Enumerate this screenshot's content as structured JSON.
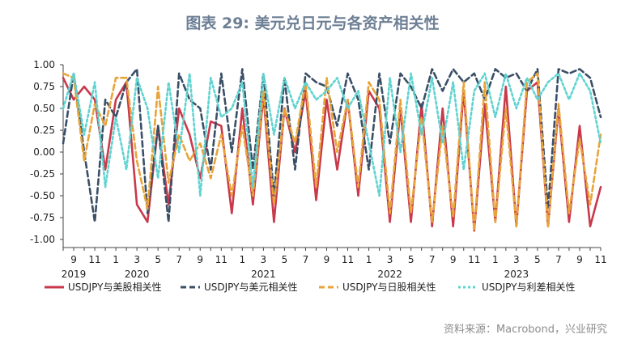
{
  "chart_data": {
    "type": "line",
    "title": "图表 29: 美元兑日元与各资产相关性",
    "xlabel": "",
    "ylabel": "",
    "ylim": [
      -1.0,
      1.0
    ],
    "y_ticks": [
      "1.00",
      "0.75",
      "0.50",
      "0.25",
      "0.00",
      "-0.25",
      "-0.50",
      "-0.75",
      "-1.00"
    ],
    "x_range_months": [
      "2019-08",
      "2023-11"
    ],
    "x_tick_labels": [
      {
        "month": "2019-09",
        "label": "9"
      },
      {
        "month": "2019-11",
        "label": "11"
      },
      {
        "month": "2020-01",
        "label": "1"
      },
      {
        "month": "2020-03",
        "label": "3"
      },
      {
        "month": "2020-05",
        "label": "5"
      },
      {
        "month": "2020-07",
        "label": "7"
      },
      {
        "month": "2020-09",
        "label": "9"
      },
      {
        "month": "2020-11",
        "label": "11"
      },
      {
        "month": "2021-01",
        "label": "1"
      },
      {
        "month": "2021-03",
        "label": "3"
      },
      {
        "month": "2021-05",
        "label": "5"
      },
      {
        "month": "2021-07",
        "label": "7"
      },
      {
        "month": "2021-09",
        "label": "9"
      },
      {
        "month": "2021-11",
        "label": "11"
      },
      {
        "month": "2022-01",
        "label": "1"
      },
      {
        "month": "2022-03",
        "label": "3"
      },
      {
        "month": "2022-05",
        "label": "5"
      },
      {
        "month": "2022-07",
        "label": "7"
      },
      {
        "month": "2022-09",
        "label": "9"
      },
      {
        "month": "2022-11",
        "label": "11"
      },
      {
        "month": "2023-01",
        "label": "1"
      },
      {
        "month": "2023-03",
        "label": "3"
      },
      {
        "month": "2023-05",
        "label": "5"
      },
      {
        "month": "2023-07",
        "label": "7"
      },
      {
        "month": "2023-09",
        "label": "9"
      },
      {
        "month": "2023-11",
        "label": "11"
      }
    ],
    "year_labels": [
      {
        "month": "2019-09",
        "label": "2019"
      },
      {
        "month": "2020-03",
        "label": "2020"
      },
      {
        "month": "2021-03",
        "label": "2021"
      },
      {
        "month": "2022-03",
        "label": "2022"
      },
      {
        "month": "2023-03",
        "label": "2023"
      }
    ],
    "grid": false,
    "legend_position": "bottom",
    "series": [
      {
        "name": "USDJPY与美股相关性",
        "color": "#c8394b",
        "style": "solid",
        "points": [
          [
            "2019-08",
            0.85
          ],
          [
            "2019-09",
            0.6
          ],
          [
            "2019-10",
            0.75
          ],
          [
            "2019-11",
            0.6
          ],
          [
            "2019-12",
            -0.2
          ],
          [
            "2020-01",
            0.6
          ],
          [
            "2020-02",
            0.8
          ],
          [
            "2020-03",
            -0.6
          ],
          [
            "2020-04",
            -0.8
          ],
          [
            "2020-05",
            0.3
          ],
          [
            "2020-06",
            -0.6
          ],
          [
            "2020-07",
            0.5
          ],
          [
            "2020-08",
            0.2
          ],
          [
            "2020-09",
            -0.3
          ],
          [
            "2020-10",
            0.35
          ],
          [
            "2020-11",
            0.3
          ],
          [
            "2020-12",
            -0.7
          ],
          [
            "2021-01",
            0.5
          ],
          [
            "2021-02",
            -0.6
          ],
          [
            "2021-03",
            0.65
          ],
          [
            "2021-04",
            -0.8
          ],
          [
            "2021-05",
            0.5
          ],
          [
            "2021-06",
            0.0
          ],
          [
            "2021-07",
            0.7
          ],
          [
            "2021-08",
            -0.55
          ],
          [
            "2021-09",
            0.6
          ],
          [
            "2021-10",
            -0.2
          ],
          [
            "2021-11",
            0.6
          ],
          [
            "2021-12",
            -0.5
          ],
          [
            "2022-01",
            0.7
          ],
          [
            "2022-02",
            0.5
          ],
          [
            "2022-03",
            -0.8
          ],
          [
            "2022-04",
            0.5
          ],
          [
            "2022-05",
            -0.8
          ],
          [
            "2022-06",
            0.55
          ],
          [
            "2022-07",
            -0.85
          ],
          [
            "2022-08",
            0.5
          ],
          [
            "2022-09",
            -0.85
          ],
          [
            "2022-10",
            0.7
          ],
          [
            "2022-11",
            -0.9
          ],
          [
            "2022-12",
            0.55
          ],
          [
            "2023-01",
            -0.8
          ],
          [
            "2023-02",
            0.75
          ],
          [
            "2023-03",
            -0.85
          ],
          [
            "2023-04",
            0.7
          ],
          [
            "2023-05",
            0.8
          ],
          [
            "2023-06",
            -0.85
          ],
          [
            "2023-07",
            0.5
          ],
          [
            "2023-08",
            -0.8
          ],
          [
            "2023-09",
            0.3
          ],
          [
            "2023-10",
            -0.85
          ],
          [
            "2023-11",
            -0.4
          ]
        ]
      },
      {
        "name": "USDJPY与美元相关性",
        "color": "#3a4f66",
        "style": "dashed",
        "points": [
          [
            "2019-08",
            0.1
          ],
          [
            "2019-09",
            0.9
          ],
          [
            "2019-10",
            0.0
          ],
          [
            "2019-11",
            -0.8
          ],
          [
            "2019-12",
            0.6
          ],
          [
            "2020-01",
            0.4
          ],
          [
            "2020-02",
            0.8
          ],
          [
            "2020-03",
            0.95
          ],
          [
            "2020-04",
            -0.7
          ],
          [
            "2020-05",
            0.3
          ],
          [
            "2020-06",
            -0.8
          ],
          [
            "2020-07",
            0.9
          ],
          [
            "2020-08",
            0.6
          ],
          [
            "2020-09",
            0.5
          ],
          [
            "2020-10",
            -0.2
          ],
          [
            "2020-11",
            0.9
          ],
          [
            "2020-12",
            0.0
          ],
          [
            "2021-01",
            0.95
          ],
          [
            "2021-02",
            -0.2
          ],
          [
            "2021-03",
            0.9
          ],
          [
            "2021-04",
            -0.5
          ],
          [
            "2021-05",
            0.85
          ],
          [
            "2021-06",
            -0.2
          ],
          [
            "2021-07",
            0.9
          ],
          [
            "2021-08",
            0.8
          ],
          [
            "2021-09",
            0.75
          ],
          [
            "2021-10",
            0.3
          ],
          [
            "2021-11",
            0.9
          ],
          [
            "2021-12",
            0.6
          ],
          [
            "2022-01",
            -0.2
          ],
          [
            "2022-02",
            0.9
          ],
          [
            "2022-03",
            0.1
          ],
          [
            "2022-04",
            0.9
          ],
          [
            "2022-05",
            0.75
          ],
          [
            "2022-06",
            0.5
          ],
          [
            "2022-07",
            0.95
          ],
          [
            "2022-08",
            0.7
          ],
          [
            "2022-09",
            0.95
          ],
          [
            "2022-10",
            0.8
          ],
          [
            "2022-11",
            0.9
          ],
          [
            "2022-12",
            0.6
          ],
          [
            "2023-01",
            0.95
          ],
          [
            "2023-02",
            0.85
          ],
          [
            "2023-03",
            0.9
          ],
          [
            "2023-04",
            0.7
          ],
          [
            "2023-05",
            0.95
          ],
          [
            "2023-06",
            -0.65
          ],
          [
            "2023-07",
            0.95
          ],
          [
            "2023-08",
            0.9
          ],
          [
            "2023-09",
            0.95
          ],
          [
            "2023-10",
            0.85
          ],
          [
            "2023-11",
            0.4
          ]
        ]
      },
      {
        "name": "USDJPY与日股相关性",
        "color": "#e8a43a",
        "style": "dashed",
        "points": [
          [
            "2019-08",
            0.9
          ],
          [
            "2019-09",
            0.85
          ],
          [
            "2019-10",
            -0.1
          ],
          [
            "2019-11",
            0.55
          ],
          [
            "2019-12",
            0.3
          ],
          [
            "2020-01",
            0.85
          ],
          [
            "2020-02",
            0.85
          ],
          [
            "2020-03",
            -0.1
          ],
          [
            "2020-04",
            -0.65
          ],
          [
            "2020-05",
            0.75
          ],
          [
            "2020-06",
            -0.35
          ],
          [
            "2020-07",
            0.2
          ],
          [
            "2020-08",
            -0.1
          ],
          [
            "2020-09",
            0.1
          ],
          [
            "2020-10",
            -0.3
          ],
          [
            "2020-11",
            0.2
          ],
          [
            "2020-12",
            -0.5
          ],
          [
            "2021-01",
            0.3
          ],
          [
            "2021-02",
            -0.5
          ],
          [
            "2021-03",
            0.7
          ],
          [
            "2021-04",
            -0.6
          ],
          [
            "2021-05",
            0.5
          ],
          [
            "2021-06",
            0.1
          ],
          [
            "2021-07",
            0.8
          ],
          [
            "2021-08",
            -0.4
          ],
          [
            "2021-09",
            0.85
          ],
          [
            "2021-10",
            0.0
          ],
          [
            "2021-11",
            0.6
          ],
          [
            "2021-12",
            -0.4
          ],
          [
            "2022-01",
            0.8
          ],
          [
            "2022-02",
            0.6
          ],
          [
            "2022-03",
            -0.7
          ],
          [
            "2022-04",
            0.6
          ],
          [
            "2022-05",
            -0.7
          ],
          [
            "2022-06",
            0.4
          ],
          [
            "2022-07",
            -0.8
          ],
          [
            "2022-08",
            0.3
          ],
          [
            "2022-09",
            -0.75
          ],
          [
            "2022-10",
            0.8
          ],
          [
            "2022-11",
            -0.9
          ],
          [
            "2022-12",
            0.8
          ],
          [
            "2023-01",
            -0.8
          ],
          [
            "2023-02",
            0.5
          ],
          [
            "2023-03",
            -0.85
          ],
          [
            "2023-04",
            0.8
          ],
          [
            "2023-05",
            0.9
          ],
          [
            "2023-06",
            -0.85
          ],
          [
            "2023-07",
            0.55
          ],
          [
            "2023-08",
            -0.7
          ],
          [
            "2023-09",
            0.15
          ],
          [
            "2023-10",
            -0.6
          ],
          [
            "2023-11",
            0.2
          ]
        ]
      },
      {
        "name": "USDJPY与利差相关性",
        "color": "#5fd3d0",
        "style": "dotted",
        "points": [
          [
            "2019-08",
            0.5
          ],
          [
            "2019-09",
            0.9
          ],
          [
            "2019-10",
            0.2
          ],
          [
            "2019-11",
            0.8
          ],
          [
            "2019-12",
            -0.4
          ],
          [
            "2020-01",
            0.4
          ],
          [
            "2020-02",
            -0.2
          ],
          [
            "2020-03",
            0.85
          ],
          [
            "2020-04",
            0.5
          ],
          [
            "2020-05",
            -0.3
          ],
          [
            "2020-06",
            0.8
          ],
          [
            "2020-07",
            0.0
          ],
          [
            "2020-08",
            0.9
          ],
          [
            "2020-09",
            -0.5
          ],
          [
            "2020-10",
            0.85
          ],
          [
            "2020-11",
            0.4
          ],
          [
            "2020-12",
            0.5
          ],
          [
            "2021-01",
            0.8
          ],
          [
            "2021-02",
            -0.4
          ],
          [
            "2021-03",
            0.9
          ],
          [
            "2021-04",
            0.2
          ],
          [
            "2021-05",
            0.85
          ],
          [
            "2021-06",
            0.5
          ],
          [
            "2021-07",
            0.8
          ],
          [
            "2021-08",
            0.6
          ],
          [
            "2021-09",
            0.7
          ],
          [
            "2021-10",
            0.85
          ],
          [
            "2021-11",
            0.5
          ],
          [
            "2021-12",
            0.7
          ],
          [
            "2022-01",
            0.1
          ],
          [
            "2022-02",
            -0.5
          ],
          [
            "2022-03",
            0.85
          ],
          [
            "2022-04",
            0.0
          ],
          [
            "2022-05",
            0.9
          ],
          [
            "2022-06",
            0.2
          ],
          [
            "2022-07",
            0.85
          ],
          [
            "2022-08",
            0.1
          ],
          [
            "2022-09",
            0.8
          ],
          [
            "2022-10",
            -0.2
          ],
          [
            "2022-11",
            0.7
          ],
          [
            "2022-12",
            0.9
          ],
          [
            "2023-01",
            0.4
          ],
          [
            "2023-02",
            0.9
          ],
          [
            "2023-03",
            0.5
          ],
          [
            "2023-04",
            0.85
          ],
          [
            "2023-05",
            0.6
          ],
          [
            "2023-06",
            0.8
          ],
          [
            "2023-07",
            0.9
          ],
          [
            "2023-08",
            0.6
          ],
          [
            "2023-09",
            0.9
          ],
          [
            "2023-10",
            0.7
          ],
          [
            "2023-11",
            0.1
          ]
        ]
      }
    ]
  },
  "source": "资料来源：Macrobond，兴业研究"
}
